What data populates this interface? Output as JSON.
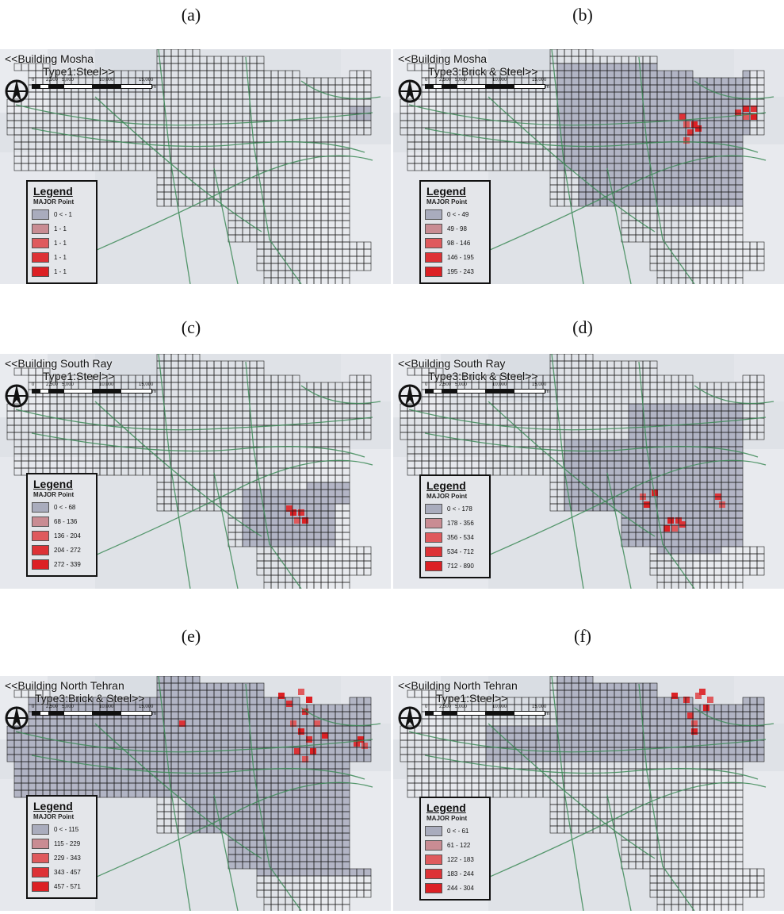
{
  "panels": [
    {
      "caption": "(a)",
      "title_line1": "<<Building Mosha",
      "title_line2": "Type1:Steel>>",
      "legend": {
        "title": "Legend",
        "subtitle": "MAJOR Point",
        "ranges": [
          "0 < - 1",
          "1 - 1",
          "1 - 1",
          "1 - 1",
          "1 - 1"
        ]
      },
      "hotspots": [],
      "extent": "full-grid-light"
    },
    {
      "caption": "(b)",
      "title_line1": "<<Building Mosha",
      "title_line2": "Type3:Brick & Steel>>",
      "legend": {
        "title": "Legend",
        "subtitle": "MAJOR Point",
        "ranges": [
          "0 < - 49",
          "49 - 98",
          "98 - 146",
          "146 - 195",
          "195 - 243"
        ]
      },
      "hotspots": [
        "north-east",
        "north-center"
      ],
      "extent": "north-central-east"
    },
    {
      "caption": "(c)",
      "title_line1": "<<Building South Ray",
      "title_line2": "Type1:Steel>>",
      "legend": {
        "title": "Legend",
        "subtitle": "MAJOR Point",
        "ranges": [
          "0 < - 68",
          "68 - 136",
          "136 - 204",
          "204 - 272",
          "272 - 339"
        ]
      },
      "hotspots": [
        "south-east"
      ],
      "extent": "south-east-small"
    },
    {
      "caption": "(d)",
      "title_line1": "<<Building South Ray",
      "title_line2": "Type3:Brick & Steel>>",
      "legend": {
        "title": "Legend",
        "subtitle": "MAJOR Point",
        "ranges": [
          "0 < - 178",
          "178 - 356",
          "356 - 534",
          "534 - 712",
          "712 - 890"
        ]
      },
      "hotspots": [
        "south",
        "south-center"
      ],
      "extent": "south-central"
    },
    {
      "caption": "(e)",
      "title_line1": "<<Building North Tehran",
      "title_line2": "Type3:Brick & Steel>>",
      "legend": {
        "title": "Legend",
        "subtitle": "MAJOR Point",
        "ranges": [
          "0 < - 115",
          "115 - 229",
          "229 - 343",
          "343 - 457",
          "457 - 571"
        ]
      },
      "hotspots": [
        "north",
        "north-east"
      ],
      "extent": "whole-city"
    },
    {
      "caption": "(f)",
      "title_line1": "<<Building North Tehran",
      "title_line2": "Type1:Steel>>",
      "legend": {
        "title": "Legend",
        "subtitle": "MAJOR Point",
        "ranges": [
          "0 < - 61",
          "61 - 122",
          "122 - 183",
          "183 - 244",
          "244 - 304"
        ]
      },
      "hotspots": [
        "north"
      ],
      "extent": "north-band"
    }
  ],
  "scale_labels": [
    "0",
    "2,500",
    "5,000",
    "10,000",
    "15,000"
  ],
  "scale_unit": "m",
  "colors": {
    "class1": "#a9acbd",
    "class2": "#c98c93",
    "class3": "#df5a5d",
    "class4": "#dd3236",
    "class5": "#dc2024",
    "map_bg": "#dfe2e7",
    "grid": "#1a1a1a",
    "roads": "#3d8a57"
  }
}
